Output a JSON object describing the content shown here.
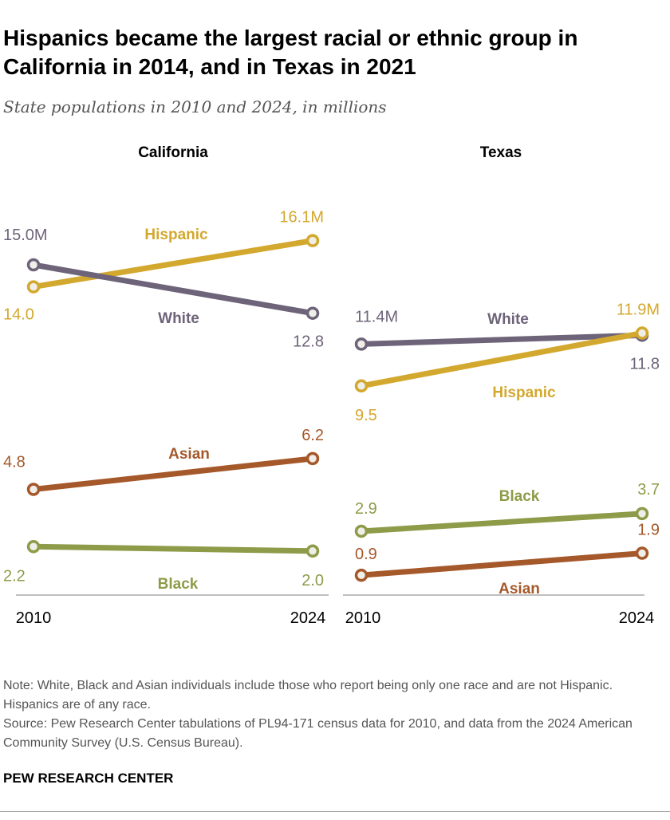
{
  "title": "Hispanics became the largest racial or ethnic group in California in 2014, and in Texas in 2021",
  "subtitle": "State populations in 2010 and 2024, in millions",
  "note": "Note: White, Black and Asian individuals include those who report being only one race and are not Hispanic. Hispanics are of any race.",
  "source": "Source: Pew Research Center tabulations of PL94-171 census data for 2010, and data from the 2024 American Community Survey (U.S. Census Bureau).",
  "logo": "PEW RESEARCH CENTER",
  "colors": {
    "Hispanic": "#D3A82E",
    "White": "#6E647A",
    "Asian": "#A5582A",
    "Black": "#8E9B49"
  },
  "chart_data": [
    {
      "type": "line",
      "title": "California",
      "categories": [
        "2010",
        "2024"
      ],
      "unit": "millions",
      "series": [
        {
          "name": "Hispanic",
          "values": [
            14.0,
            16.1
          ],
          "labels": [
            "14.0",
            "16.1M"
          ]
        },
        {
          "name": "White",
          "values": [
            15.0,
            12.8
          ],
          "labels": [
            "15.0M",
            "12.8"
          ]
        },
        {
          "name": "Asian",
          "values": [
            4.8,
            6.2
          ],
          "labels": [
            "4.8",
            "6.2"
          ]
        },
        {
          "name": "Black",
          "values": [
            2.2,
            2.0
          ],
          "labels": [
            "2.2",
            "2.0"
          ]
        }
      ]
    },
    {
      "type": "line",
      "title": "Texas",
      "categories": [
        "2010",
        "2024"
      ],
      "unit": "millions",
      "series": [
        {
          "name": "White",
          "values": [
            11.4,
            11.8
          ],
          "labels": [
            "11.4M",
            "11.8"
          ]
        },
        {
          "name": "Hispanic",
          "values": [
            9.5,
            11.9
          ],
          "labels": [
            "9.5",
            "11.9M"
          ]
        },
        {
          "name": "Black",
          "values": [
            2.9,
            3.7
          ],
          "labels": [
            "2.9",
            "3.7"
          ]
        },
        {
          "name": "Asian",
          "values": [
            0.9,
            1.9
          ],
          "labels": [
            "0.9",
            "1.9"
          ]
        }
      ]
    }
  ]
}
